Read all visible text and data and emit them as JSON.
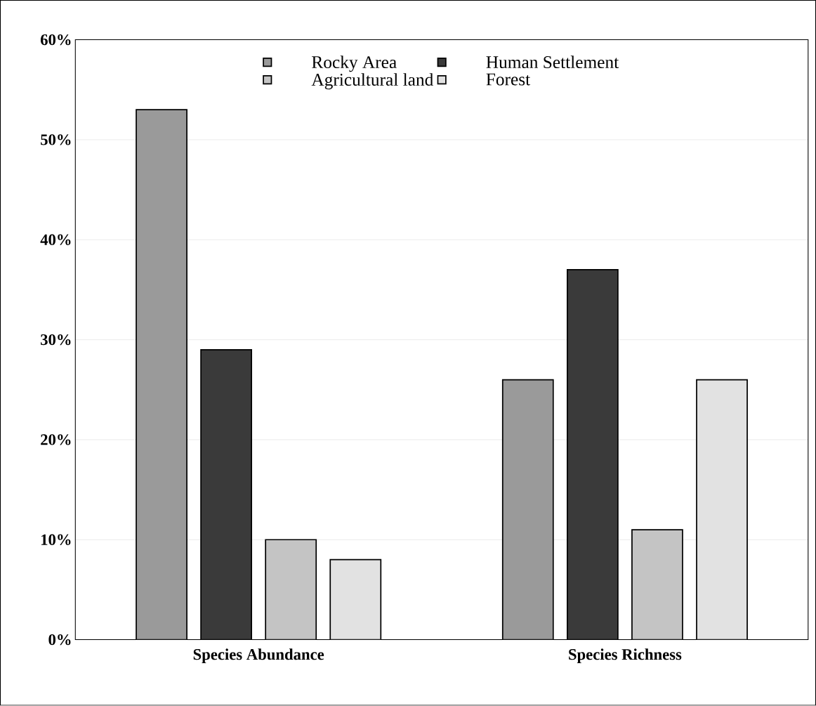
{
  "chart_data": {
    "type": "bar",
    "categories": [
      "Species Abundance",
      "Species Richness"
    ],
    "series": [
      {
        "name": "Rocky Area",
        "color": "#9a9a9a",
        "values": [
          53,
          26
        ]
      },
      {
        "name": "Human Settlement",
        "color": "#3a3a3a",
        "values": [
          29,
          37
        ]
      },
      {
        "name": "Agricultural land",
        "color": "#c4c4c4",
        "values": [
          10,
          11
        ]
      },
      {
        "name": "Forest",
        "color": "#e2e2e2",
        "values": [
          8,
          26
        ]
      }
    ],
    "ylim": [
      0,
      60
    ],
    "yticks": [
      {
        "value": 0,
        "label": "0%"
      },
      {
        "value": 10,
        "label": "10%"
      },
      {
        "value": 20,
        "label": "20%"
      },
      {
        "value": 30,
        "label": "30%"
      },
      {
        "value": 40,
        "label": "40%"
      },
      {
        "value": 50,
        "label": "50%"
      },
      {
        "value": 60,
        "label": "60%"
      }
    ],
    "grid": "y",
    "legend": "top"
  }
}
